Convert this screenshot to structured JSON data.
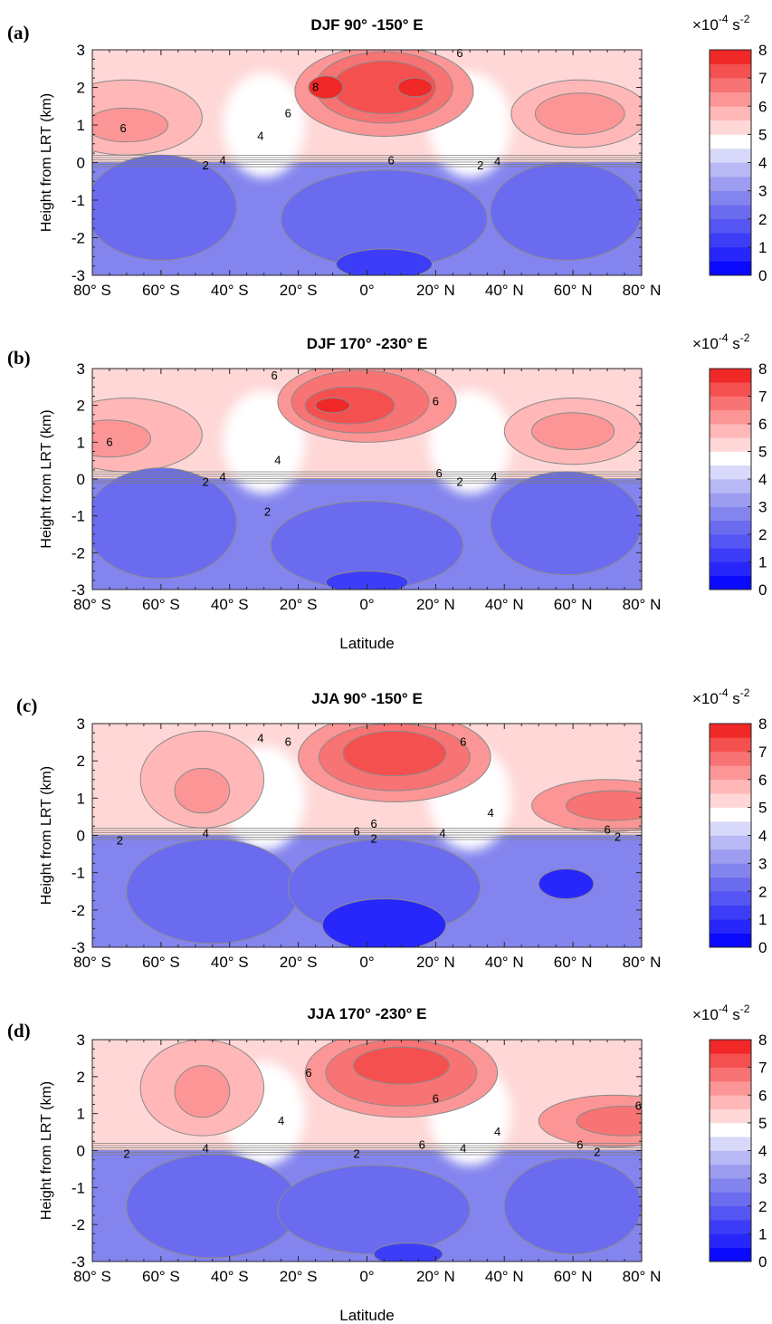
{
  "chart_data": [
    {
      "type": "heatmap",
      "panel": "(a)",
      "title": "DJF 90° -150° E",
      "ylabel": "Height from LRT (km)",
      "xlabel": "",
      "x_ticks": [
        "80° S",
        "60° S",
        "40° S",
        "20° S",
        "0°",
        "20° N",
        "40° N",
        "60° N",
        "80° N"
      ],
      "y_ticks": [
        "-3",
        "-2",
        "-1",
        "0",
        "1",
        "2",
        "3"
      ],
      "xlim": [
        -80,
        80
      ],
      "ylim": [
        -3,
        3
      ],
      "contour_labels": [
        {
          "text": "6",
          "lat": -71,
          "h": 0.9
        },
        {
          "text": "4",
          "lat": -31,
          "h": 0.7
        },
        {
          "text": "6",
          "lat": -23,
          "h": 1.3
        },
        {
          "text": "8",
          "lat": -15,
          "h": 2.0
        },
        {
          "text": "6",
          "lat": 27,
          "h": 2.9
        },
        {
          "text": "2",
          "lat": -47,
          "h": -0.08
        },
        {
          "text": "4",
          "lat": -42,
          "h": 0.05
        },
        {
          "text": "6",
          "lat": 7,
          "h": 0.05
        },
        {
          "text": "2",
          "lat": 33,
          "h": -0.08
        },
        {
          "text": "4",
          "lat": 38,
          "h": 0.02
        }
      ]
    },
    {
      "type": "heatmap",
      "panel": "(b)",
      "title": "DJF 170° -230° E",
      "ylabel": "Height from LRT (km)",
      "xlabel": "Latitude",
      "x_ticks": [
        "80° S",
        "60° S",
        "40° S",
        "20° S",
        "0°",
        "20° N",
        "40° N",
        "60° N",
        "80° N"
      ],
      "y_ticks": [
        "-3",
        "-2",
        "-1",
        "0",
        "1",
        "2",
        "3"
      ],
      "xlim": [
        -80,
        80
      ],
      "ylim": [
        -3,
        3
      ],
      "contour_labels": [
        {
          "text": "6",
          "lat": -75,
          "h": 1.0
        },
        {
          "text": "4",
          "lat": -26,
          "h": 0.5
        },
        {
          "text": "6",
          "lat": -27,
          "h": 2.8
        },
        {
          "text": "6",
          "lat": 20,
          "h": 2.1
        },
        {
          "text": "2",
          "lat": -29,
          "h": -0.9
        },
        {
          "text": "2",
          "lat": -47,
          "h": -0.08
        },
        {
          "text": "4",
          "lat": -42,
          "h": 0.05
        },
        {
          "text": "6",
          "lat": 21,
          "h": 0.15
        },
        {
          "text": "2",
          "lat": 27,
          "h": -0.08
        },
        {
          "text": "4",
          "lat": 37,
          "h": 0.05
        }
      ]
    },
    {
      "type": "heatmap",
      "panel": "(c)",
      "title": "JJA 90° -150° E",
      "ylabel": "Height from LRT (km)",
      "xlabel": "",
      "x_ticks": [
        "80° S",
        "60° S",
        "40° S",
        "20° S",
        "0°",
        "20° N",
        "40° N",
        "60° N",
        "80° N"
      ],
      "y_ticks": [
        "-3",
        "-2",
        "-1",
        "0",
        "1",
        "2",
        "3"
      ],
      "xlim": [
        -80,
        80
      ],
      "ylim": [
        -3,
        3
      ],
      "contour_labels": [
        {
          "text": "4",
          "lat": -31,
          "h": 2.6
        },
        {
          "text": "6",
          "lat": -23,
          "h": 2.5
        },
        {
          "text": "6",
          "lat": 28,
          "h": 2.5
        },
        {
          "text": "4",
          "lat": 36,
          "h": 0.6
        },
        {
          "text": "2",
          "lat": -72,
          "h": -0.15
        },
        {
          "text": "4",
          "lat": -47,
          "h": 0.05
        },
        {
          "text": "6",
          "lat": -3,
          "h": 0.1
        },
        {
          "text": "6",
          "lat": 2,
          "h": 0.3
        },
        {
          "text": "2",
          "lat": 2,
          "h": -0.1
        },
        {
          "text": "4",
          "lat": 22,
          "h": 0.05
        },
        {
          "text": "6",
          "lat": 70,
          "h": 0.15
        },
        {
          "text": "2",
          "lat": 73,
          "h": -0.05
        }
      ]
    },
    {
      "type": "heatmap",
      "panel": "(d)",
      "title": "JJA 170° -230° E",
      "ylabel": "Height from LRT (km)",
      "xlabel": "Latitude",
      "x_ticks": [
        "80° S",
        "60° S",
        "40° S",
        "20° S",
        "0°",
        "20° N",
        "40° N",
        "60° N",
        "80° N"
      ],
      "y_ticks": [
        "-3",
        "-2",
        "-1",
        "0",
        "1",
        "2",
        "3"
      ],
      "xlim": [
        -80,
        80
      ],
      "ylim": [
        -3,
        3
      ],
      "contour_labels": [
        {
          "text": "6",
          "lat": -17,
          "h": 2.1
        },
        {
          "text": "4",
          "lat": -25,
          "h": 0.8
        },
        {
          "text": "6",
          "lat": 20,
          "h": 1.4
        },
        {
          "text": "4",
          "lat": 38,
          "h": 0.5
        },
        {
          "text": "6",
          "lat": 79,
          "h": 1.2
        },
        {
          "text": "2",
          "lat": -70,
          "h": -0.1
        },
        {
          "text": "4",
          "lat": -47,
          "h": 0.05
        },
        {
          "text": "2",
          "lat": -3,
          "h": -0.1
        },
        {
          "text": "6",
          "lat": 16,
          "h": 0.15
        },
        {
          "text": "4",
          "lat": 28,
          "h": 0.05
        },
        {
          "text": "6",
          "lat": 62,
          "h": 0.15
        },
        {
          "text": "2",
          "lat": 67,
          "h": -0.05
        }
      ]
    }
  ],
  "colorbar": {
    "unit": "×10-4 s-2",
    "unit_prefix": "×10",
    "unit_exp1": "-4",
    "unit_s": " s",
    "unit_exp2": "-2",
    "ticks": [
      "0",
      "1",
      "2",
      "3",
      "4",
      "5",
      "6",
      "7",
      "8"
    ],
    "range": [
      0,
      8
    ],
    "levels": 16,
    "colors": [
      "#0a0aff",
      "#2727fc",
      "#3d3df8",
      "#5555f4",
      "#6b6bf0",
      "#8484ee",
      "#9c9cf0",
      "#b8b8f5",
      "#d8d8fa",
      "#ffffff",
      "#ffd7d7",
      "#ffb7b7",
      "#fc9696",
      "#f87373",
      "#f55050",
      "#f02828"
    ]
  }
}
